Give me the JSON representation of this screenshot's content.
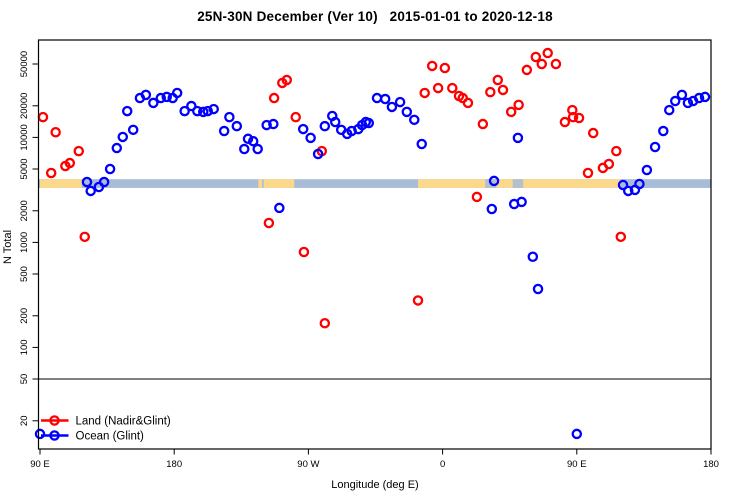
{
  "chart_data": {
    "type": "scatter",
    "title": "25N-30N December (Ver 10)   2015-01-01 to 2020-12-18",
    "xlabel": "Longitude (deg E)",
    "ylabel": "N Total",
    "y_scale": "log",
    "y_lim": [
      12,
      70000
    ],
    "x_axis_deg_range": [
      90,
      540
    ],
    "x_ticks": [
      {
        "deg": 90,
        "label": "90 E"
      },
      {
        "deg": 180,
        "label": "180"
      },
      {
        "deg": 270,
        "label": "90 W"
      },
      {
        "deg": 360,
        "label": "0"
      },
      {
        "deg": 450,
        "label": "90 E"
      },
      {
        "deg": 540,
        "label": "180"
      }
    ],
    "y_ticks": [
      50000,
      20000,
      10000,
      5000,
      2000,
      1000,
      500,
      200,
      100,
      50,
      20
    ],
    "threshold_line_n": 50,
    "legend_position": "bottom-left",
    "surface_band": {
      "description": "land/ocean strip for 25N-30N",
      "n_top": 4000,
      "n_bottom": 3300,
      "ocean_color": "#a8bcd8",
      "land_color": "#fad88c",
      "land_segments_deg": [
        [
          90,
          118
        ],
        [
          240,
          260.5
        ],
        [
          343.5,
          479.5
        ]
      ],
      "land_slivers_deg": [
        [
          236.5,
          239
        ]
      ],
      "water_patches_deg": [
        [
          388.5,
          396
        ],
        [
          407,
          414
        ]
      ]
    },
    "series": [
      {
        "name": "Land (Nadir&Glint)",
        "color": "#ff0000",
        "points": [
          [
            92,
            15600
          ],
          [
            97.5,
            4580
          ],
          [
            100.5,
            11200
          ],
          [
            107,
            5340
          ],
          [
            110,
            5700
          ],
          [
            116,
            7400
          ],
          [
            120,
            1130
          ],
          [
            243.5,
            1530
          ],
          [
            247,
            23700
          ],
          [
            252.5,
            33000
          ],
          [
            255.5,
            35200
          ],
          [
            261.5,
            15600
          ],
          [
            267,
            810
          ],
          [
            279,
            7400
          ],
          [
            281,
            170
          ],
          [
            343.5,
            280
          ],
          [
            348,
            26500
          ],
          [
            353,
            47900
          ],
          [
            357,
            29500
          ],
          [
            361.5,
            45800
          ],
          [
            366.5,
            29500
          ],
          [
            371,
            24800
          ],
          [
            373.5,
            23700
          ],
          [
            377,
            21300
          ],
          [
            383,
            2710
          ],
          [
            387,
            13400
          ],
          [
            392,
            27000
          ],
          [
            397,
            35200
          ],
          [
            400.5,
            28300
          ],
          [
            406,
            17500
          ],
          [
            411,
            20400
          ],
          [
            416.5,
            43900
          ],
          [
            422.5,
            58300
          ],
          [
            426.5,
            50000
          ],
          [
            430.5,
            63600
          ],
          [
            436,
            50000
          ],
          [
            442,
            14000
          ],
          [
            447,
            18200
          ],
          [
            447.5,
            15600
          ],
          [
            451.5,
            15300
          ],
          [
            457.5,
            4580
          ],
          [
            461,
            11000
          ],
          [
            467.5,
            5120
          ],
          [
            471.5,
            5580
          ],
          [
            476.5,
            7400
          ],
          [
            479.5,
            1130
          ]
        ]
      },
      {
        "name": "Ocean (Glint)",
        "color": "#0000ff",
        "points": [
          [
            90,
            15
          ],
          [
            121.5,
            3760
          ],
          [
            124,
            3090
          ],
          [
            129.5,
            3370
          ],
          [
            133,
            3760
          ],
          [
            137,
            5000
          ],
          [
            141.5,
            7920
          ],
          [
            145.5,
            10100
          ],
          [
            148.5,
            17800
          ],
          [
            152.5,
            11800
          ],
          [
            157,
            23700
          ],
          [
            161,
            25400
          ],
          [
            166,
            21300
          ],
          [
            171,
            23700
          ],
          [
            175,
            24300
          ],
          [
            179,
            23700
          ],
          [
            182,
            26500
          ],
          [
            187,
            17800
          ],
          [
            191.5,
            19900
          ],
          [
            195.5,
            17800
          ],
          [
            199.5,
            17500
          ],
          [
            202.5,
            17800
          ],
          [
            206.5,
            18600
          ],
          [
            213.5,
            11500
          ],
          [
            217,
            15600
          ],
          [
            222,
            12800
          ],
          [
            227,
            7750
          ],
          [
            229.5,
            9700
          ],
          [
            233,
            9200
          ],
          [
            236,
            7750
          ],
          [
            242,
            13100
          ],
          [
            246.5,
            13400
          ],
          [
            250.5,
            2130
          ],
          [
            266.5,
            12000
          ],
          [
            271.5,
            9900
          ],
          [
            276.5,
            6950
          ],
          [
            281,
            12800
          ],
          [
            286,
            16000
          ],
          [
            288,
            14000
          ],
          [
            292,
            11800
          ],
          [
            296,
            10800
          ],
          [
            299,
            11500
          ],
          [
            303.5,
            12000
          ],
          [
            306,
            13100
          ],
          [
            308.5,
            14000
          ],
          [
            310.5,
            13700
          ],
          [
            316,
            23700
          ],
          [
            321.5,
            23200
          ],
          [
            326,
            19500
          ],
          [
            331.5,
            21700
          ],
          [
            336,
            17500
          ],
          [
            341,
            14700
          ],
          [
            346,
            8650
          ],
          [
            393,
            2080
          ],
          [
            394.5,
            3850
          ],
          [
            408,
            2320
          ],
          [
            410.5,
            9900
          ],
          [
            413,
            2430
          ],
          [
            420.5,
            730
          ],
          [
            424,
            360
          ],
          [
            450,
            15
          ],
          [
            481,
            3520
          ],
          [
            484.5,
            3090
          ],
          [
            489,
            3160
          ],
          [
            492,
            3600
          ],
          [
            497,
            4890
          ],
          [
            502.5,
            8100
          ],
          [
            508,
            11500
          ],
          [
            512,
            18200
          ],
          [
            516,
            22200
          ],
          [
            520.5,
            25400
          ],
          [
            524.5,
            21300
          ],
          [
            528,
            22200
          ],
          [
            532,
            23700
          ],
          [
            536,
            24300
          ]
        ]
      }
    ]
  }
}
